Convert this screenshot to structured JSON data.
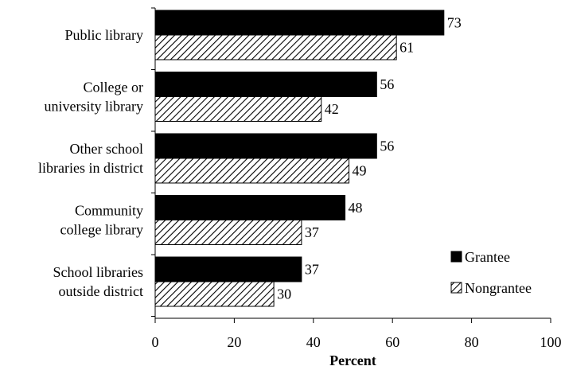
{
  "chart_data": {
    "type": "bar",
    "orientation": "horizontal",
    "title": "",
    "xlabel": "Percent",
    "ylabel": "",
    "xlim": [
      0,
      100
    ],
    "xticks": [
      0,
      20,
      40,
      60,
      80,
      100
    ],
    "categories": [
      [
        "Public library"
      ],
      [
        "College or",
        "university library"
      ],
      [
        "Other school",
        "libraries in district"
      ],
      [
        "Community",
        "college library"
      ],
      [
        "School libraries",
        "outside district"
      ]
    ],
    "series": [
      {
        "name": "Grantee",
        "pattern": "solid",
        "color": "#000000",
        "values": [
          73,
          56,
          56,
          48,
          37
        ]
      },
      {
        "name": "Nongrantee",
        "pattern": "diagonal-hatch",
        "color": "#000000",
        "values": [
          61,
          42,
          49,
          37,
          30
        ]
      }
    ],
    "grid": false,
    "legend_position": "bottom-right",
    "data_labels": true
  }
}
